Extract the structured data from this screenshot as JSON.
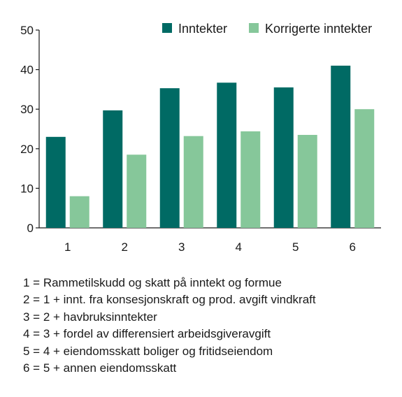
{
  "chart_data": {
    "type": "bar",
    "categories": [
      "1",
      "2",
      "3",
      "4",
      "5",
      "6"
    ],
    "series": [
      {
        "name": "Inntekter",
        "values": [
          23,
          29.7,
          35.3,
          36.7,
          35.5,
          41
        ]
      },
      {
        "name": "Korrigerte inntekter",
        "values": [
          8,
          18.5,
          23.2,
          24.4,
          23.5,
          30
        ]
      }
    ],
    "ylim": [
      0,
      50
    ],
    "yticks": [
      0,
      10,
      20,
      30,
      40,
      50
    ],
    "grid": false,
    "legend_position": "top-right",
    "colors": [
      "#006a64",
      "#86c79a"
    ]
  },
  "notes": [
    "1 = Rammetilskudd og skatt på inntekt og formue",
    "2 = 1 + innt. fra konsesjonskraft og prod. avgift vindkraft",
    "3 = 2 + havbruksinntekter",
    "4 = 3 + fordel av differensiert arbeidsgiveravgift",
    "5 = 4 + eiendomsskatt boliger og fritidseiendom",
    "6 = 5 + annen eiendomsskatt"
  ]
}
